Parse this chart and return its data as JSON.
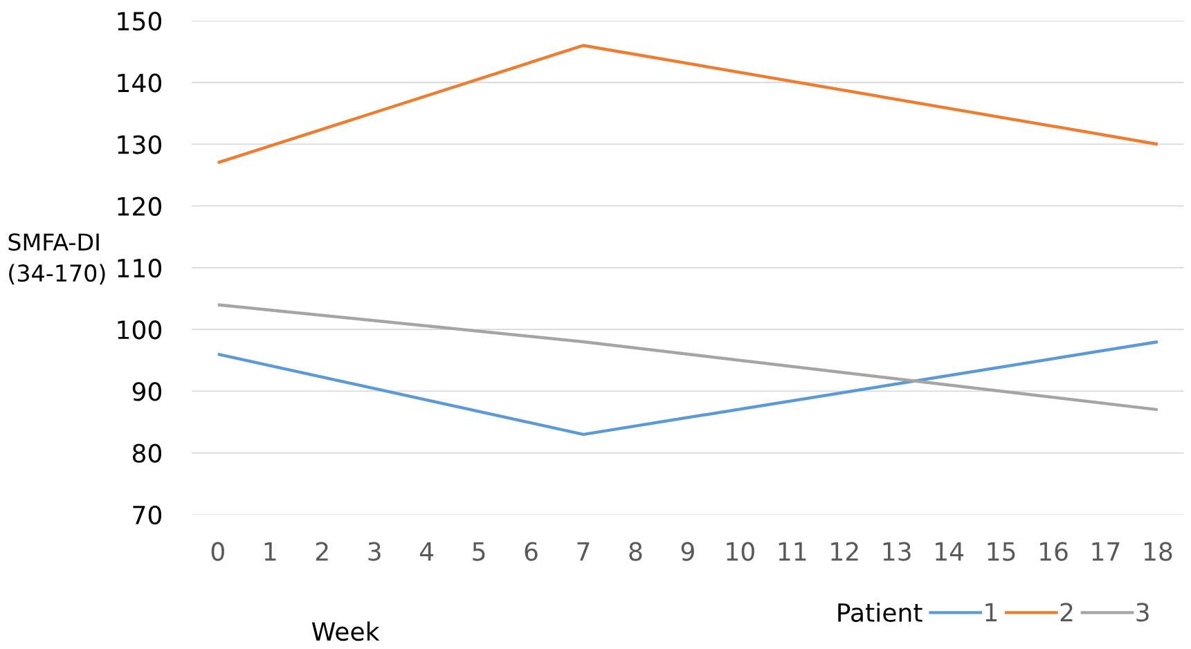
{
  "chart_data": {
    "type": "line",
    "xlabel": "Week",
    "ylabel": "SMFA-DI\n(34-170)",
    "legend_title": "Patient",
    "x": [
      0,
      7,
      18
    ],
    "series": [
      {
        "name": "1",
        "color": "#5b9bd5",
        "values": [
          96,
          83,
          98
        ]
      },
      {
        "name": "2",
        "color": "#ed7d31",
        "values": [
          127,
          146,
          130
        ]
      },
      {
        "name": "3",
        "color": "#a5a5a5",
        "values": [
          104,
          98,
          87
        ]
      }
    ],
    "xlim": [
      -0.5,
      18.5
    ],
    "xticks": [
      0,
      1,
      2,
      3,
      4,
      5,
      6,
      7,
      8,
      9,
      10,
      11,
      12,
      13,
      14,
      15,
      16,
      17,
      18
    ],
    "ylim": [
      70,
      150
    ],
    "yticks": [
      70,
      80,
      90,
      100,
      110,
      120,
      130,
      140,
      150
    ],
    "grid": "y",
    "legend": "bottom right",
    "marker": "none",
    "line_style": "solid"
  }
}
